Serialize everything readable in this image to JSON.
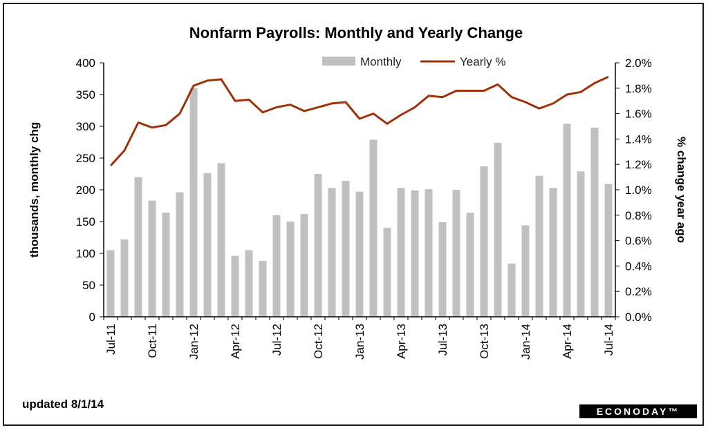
{
  "chart_data": {
    "type": "bar",
    "title": "Nonfarm Payrolls: Monthly and Yearly Change",
    "ylabel": "thousands, monthly chg",
    "y2label": "% change year ago",
    "ylim": [
      0,
      400
    ],
    "y2lim": [
      0,
      2.0
    ],
    "yticks": [
      "0",
      "50",
      "100",
      "150",
      "200",
      "250",
      "300",
      "350",
      "400"
    ],
    "y2ticks": [
      "0.0%",
      "0.2%",
      "0.4%",
      "0.6%",
      "0.8%",
      "1.0%",
      "1.2%",
      "1.4%",
      "1.6%",
      "1.8%",
      "2.0%"
    ],
    "xticks": [
      "Jul-11",
      "Oct-11",
      "Jan-12",
      "Apr-12",
      "Jul-12",
      "Oct-12",
      "Jan-13",
      "Apr-13",
      "Jul-13",
      "Oct-13",
      "Jan-14",
      "Apr-14",
      "Jul-14"
    ],
    "categories": [
      "Jul-11",
      "Aug-11",
      "Sep-11",
      "Oct-11",
      "Nov-11",
      "Dec-11",
      "Jan-12",
      "Feb-12",
      "Mar-12",
      "Apr-12",
      "May-12",
      "Jun-12",
      "Jul-12",
      "Aug-12",
      "Sep-12",
      "Oct-12",
      "Nov-12",
      "Dec-12",
      "Jan-13",
      "Feb-13",
      "Mar-13",
      "Apr-13",
      "May-13",
      "Jun-13",
      "Jul-13",
      "Aug-13",
      "Sep-13",
      "Oct-13",
      "Nov-13",
      "Dec-13",
      "Jan-14",
      "Feb-14",
      "Mar-14",
      "Apr-14",
      "May-14",
      "Jun-14",
      "Jul-14"
    ],
    "legend_position": "top",
    "grid": false,
    "series": [
      {
        "name": "Monthly",
        "kind": "bar",
        "axis": "left",
        "color": "#c0c0c0",
        "values": [
          105,
          122,
          220,
          183,
          164,
          196,
          360,
          226,
          242,
          96,
          105,
          88,
          160,
          150,
          162,
          225,
          203,
          214,
          197,
          279,
          140,
          203,
          199,
          201,
          149,
          200,
          164,
          237,
          274,
          84,
          144,
          222,
          203,
          304,
          229,
          298,
          209
        ]
      },
      {
        "name": "Yearly %",
        "kind": "line",
        "axis": "right",
        "color": "#a0300a",
        "values": [
          1.19,
          1.31,
          1.53,
          1.49,
          1.51,
          1.6,
          1.82,
          1.86,
          1.87,
          1.7,
          1.71,
          1.61,
          1.65,
          1.67,
          1.62,
          1.65,
          1.68,
          1.69,
          1.56,
          1.6,
          1.52,
          1.59,
          1.65,
          1.74,
          1.73,
          1.78,
          1.78,
          1.78,
          1.83,
          1.73,
          1.69,
          1.64,
          1.68,
          1.75,
          1.77,
          1.84,
          1.89
        ]
      }
    ]
  },
  "footer": {
    "updated": "updated 8/1/14",
    "brand": "ECONODAY™"
  }
}
